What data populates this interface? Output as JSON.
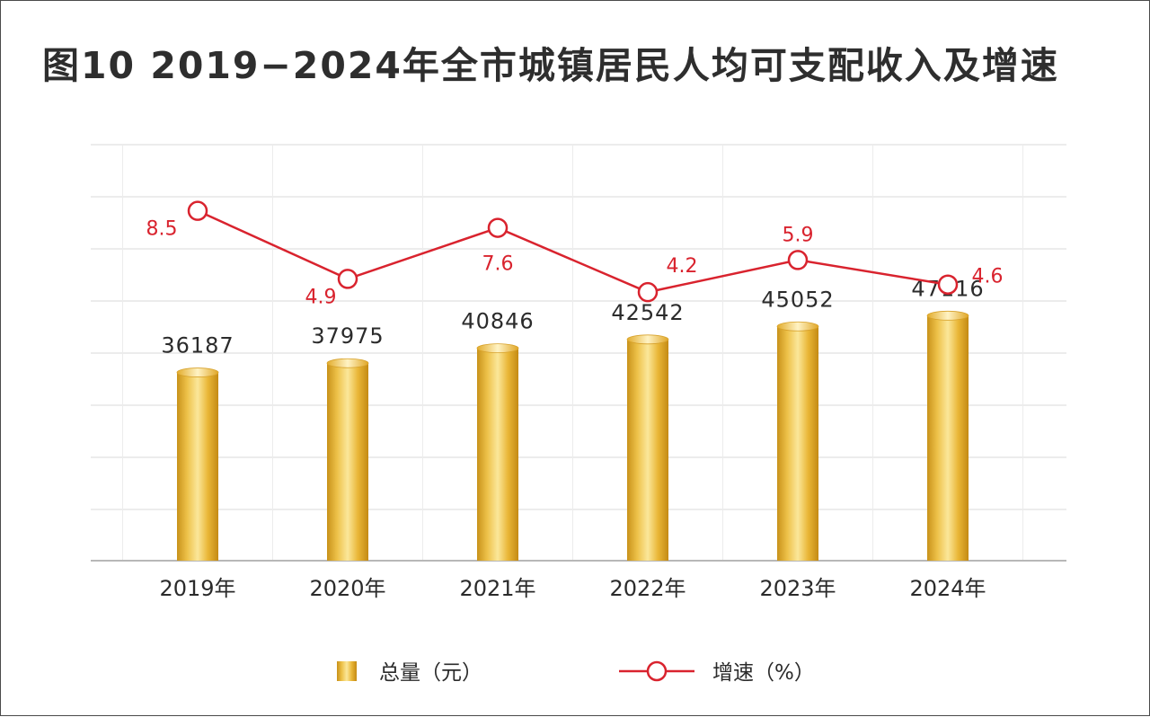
{
  "title": "图10  2019−2024年全市城镇居民人均可支配收入及增速",
  "chart_data": {
    "type": "bar+line",
    "categories": [
      "2019年",
      "2020年",
      "2021年",
      "2022年",
      "2023年",
      "2024年"
    ],
    "series": [
      {
        "name": "总量（元）",
        "type": "bar",
        "axis": "left",
        "values": [
          36187,
          37975,
          40846,
          42542,
          45052,
          47116
        ]
      },
      {
        "name": "增速（%）",
        "type": "line",
        "axis": "right",
        "values": [
          8.5,
          4.9,
          7.6,
          4.2,
          5.9,
          4.6
        ]
      }
    ],
    "bar_axis_range": [
      0,
      80000
    ],
    "line_axis_range": [
      -10,
      12
    ],
    "grid": true,
    "axis_tick_labels_shown": false,
    "legend_position": "bottom",
    "colors": {
      "bar": "#e8b830",
      "line": "#d9232e",
      "grid": "#d8d8d8"
    }
  }
}
